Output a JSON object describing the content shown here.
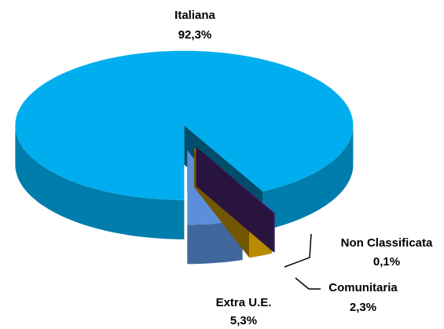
{
  "chart_data": {
    "type": "pie",
    "categories": [
      "Non Classificata",
      "Comunitaria",
      "Extra U.E.",
      "Italiana"
    ],
    "values": [
      0.1,
      2.3,
      5.3,
      92.3
    ],
    "value_labels": [
      "0,1%",
      "2,3%",
      "5,3%",
      "92,3%"
    ],
    "colors": [
      "#5b2c8f",
      "#ffc000",
      "#5b8fd9",
      "#00aeef"
    ]
  }
}
